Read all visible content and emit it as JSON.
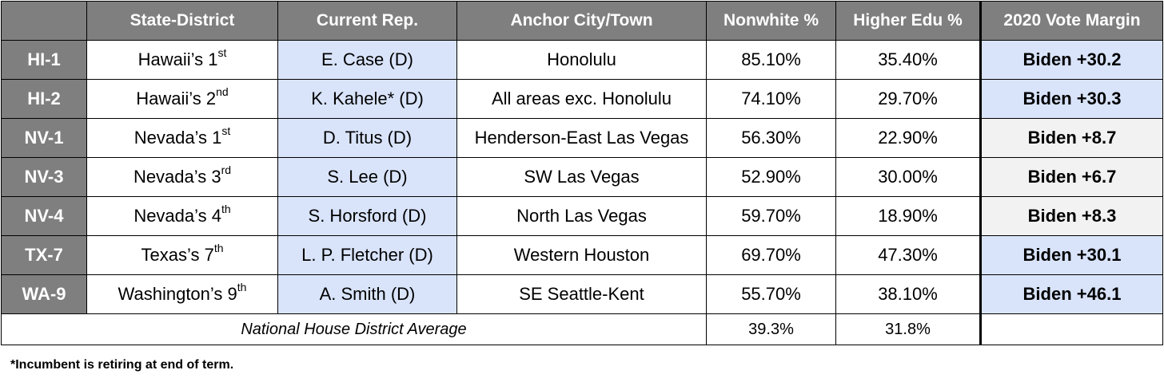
{
  "headers": {
    "code": "",
    "district": "State-District",
    "rep": "Current Rep.",
    "city": "Anchor City/Town",
    "nonwhite": "Nonwhite %",
    "edu": "Higher Edu %",
    "margin": "2020 Vote Margin"
  },
  "rows": [
    {
      "code": "HI-1",
      "district": "Hawaii’s 1",
      "ordinal": "st",
      "rep": "E. Case (D)",
      "city": "Honolulu",
      "nonwhite": "85.10%",
      "edu": "35.40%",
      "margin": "Biden +30.2",
      "margin_color": "#d9e4fb"
    },
    {
      "code": "HI-2",
      "district": "Hawaii’s 2",
      "ordinal": "nd",
      "rep": "K. Kahele* (D)",
      "city": "All areas exc. Honolulu",
      "nonwhite": "74.10%",
      "edu": "29.70%",
      "margin": "Biden +30.3",
      "margin_color": "#d9e4fb"
    },
    {
      "code": "NV-1",
      "district": "Nevada’s 1",
      "ordinal": "st",
      "rep": "D. Titus (D)",
      "city": "Henderson-East Las Vegas",
      "nonwhite": "56.30%",
      "edu": "22.90%",
      "margin": "Biden +8.7",
      "margin_color": "#f2f2f2"
    },
    {
      "code": "NV-3",
      "district": "Nevada’s 3",
      "ordinal": "rd",
      "rep": "S. Lee (D)",
      "city": "SW Las Vegas",
      "nonwhite": "52.90%",
      "edu": "30.00%",
      "margin": "Biden +6.7",
      "margin_color": "#f2f2f2"
    },
    {
      "code": "NV-4",
      "district": "Nevada’s 4",
      "ordinal": "th",
      "rep": "S. Horsford (D)",
      "city": "North Las Vegas",
      "nonwhite": "59.70%",
      "edu": "18.90%",
      "margin": "Biden +8.3",
      "margin_color": "#f2f2f2"
    },
    {
      "code": "TX-7",
      "district": "Texas’s 7",
      "ordinal": "th",
      "rep": "L. P. Fletcher (D)",
      "city": "Western Houston",
      "nonwhite": "69.70%",
      "edu": "47.30%",
      "margin": "Biden +30.1",
      "margin_color": "#d9e4fb"
    },
    {
      "code": "WA-9",
      "district": "Washington’s 9",
      "ordinal": "th",
      "rep": "A. Smith (D)",
      "city": "SE Seattle-Kent",
      "nonwhite": "55.70%",
      "edu": "38.10%",
      "margin": "Biden +46.1",
      "margin_color": "#d9e4fb"
    }
  ],
  "average": {
    "label": "National House District Average",
    "nonwhite": "39.3%",
    "edu": "31.8%",
    "margin": ""
  },
  "footnote": "*Incumbent is retiring at end of term."
}
